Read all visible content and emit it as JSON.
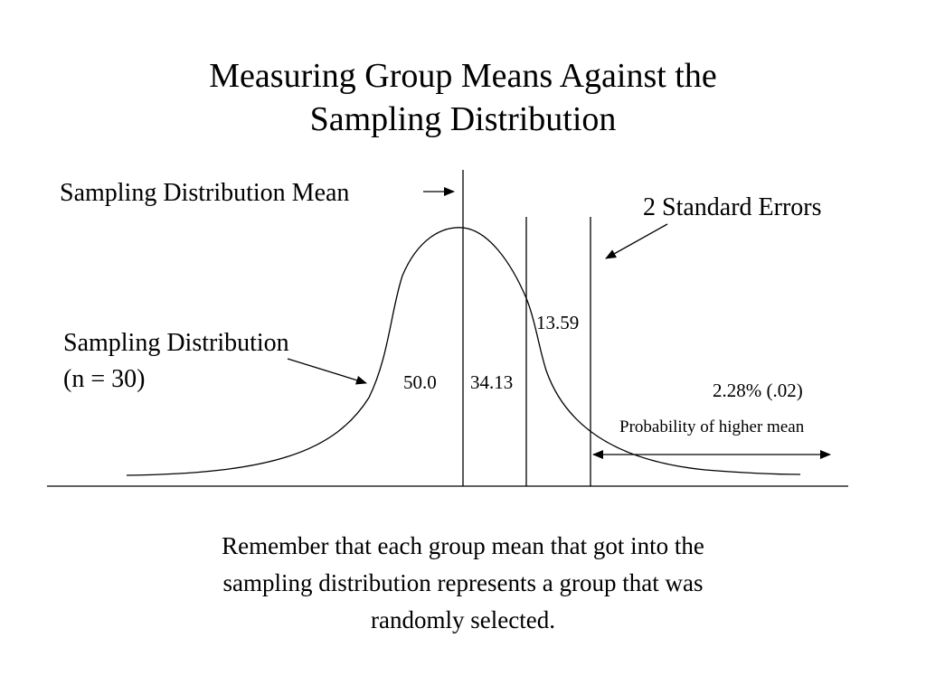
{
  "title": {
    "line1": "Measuring Group Means Against the",
    "line2": "Sampling Distribution"
  },
  "labels": {
    "distribution_mean": "Sampling Distribution Mean",
    "standard_errors": "2 Standard Errors",
    "distribution_line1": "Sampling Distribution",
    "distribution_line2": "(n = 30)",
    "pct_50": "50.0",
    "pct_34": "34.13",
    "pct_13": "13.59",
    "tail_pct": "2.28% (.02)",
    "tail_desc": "Probability of higher mean"
  },
  "caption": {
    "line1": "Remember that each group mean that got into the",
    "line2": "sampling distribution represents a group that was",
    "line3": "randomly selected."
  },
  "colors": {
    "ink": "#000000",
    "background": "#ffffff"
  }
}
